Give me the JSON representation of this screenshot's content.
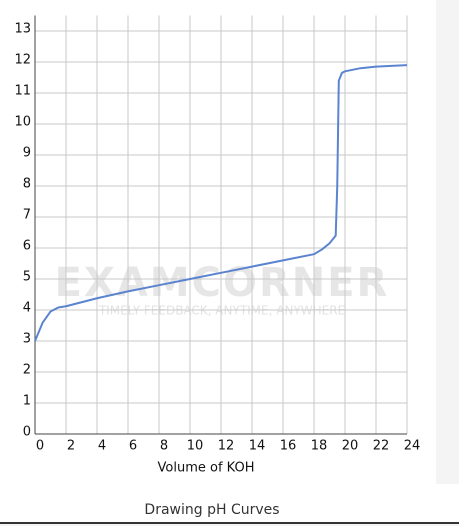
{
  "chart_data": {
    "type": "line",
    "x_label": "Volume of KOH",
    "x": [
      0,
      0.5,
      1,
      1.5,
      2,
      3,
      4,
      6,
      8,
      10,
      12,
      14,
      16,
      18,
      18.5,
      19,
      19.4,
      19.5,
      19.6,
      19.8,
      20,
      21,
      22,
      24
    ],
    "series": [
      {
        "color": "#5b84d0",
        "values": [
          3,
          3.6,
          3.95,
          4.08,
          4.12,
          4.25,
          4.38,
          4.6,
          4.8,
          5.0,
          5.2,
          5.4,
          5.6,
          5.8,
          5.95,
          6.15,
          6.4,
          8,
          11.4,
          11.65,
          11.7,
          11.8,
          11.85,
          11.9
        ]
      }
    ],
    "xlim": [
      0,
      24
    ],
    "xticks": [
      0,
      2,
      4,
      6,
      8,
      10,
      12,
      14,
      16,
      18,
      20,
      22,
      24
    ],
    "ylim": [
      0,
      13.5
    ],
    "yticks": [
      0,
      1,
      2,
      3,
      4,
      5,
      6,
      7,
      8,
      9,
      10,
      11,
      12,
      13
    ],
    "grid": true
  },
  "watermark": "EXAMCORNER",
  "watermark_tagline": "TIMELY FEEDBACK, ANYTIME, ANYWHERE",
  "caption": "Drawing pH Curves"
}
